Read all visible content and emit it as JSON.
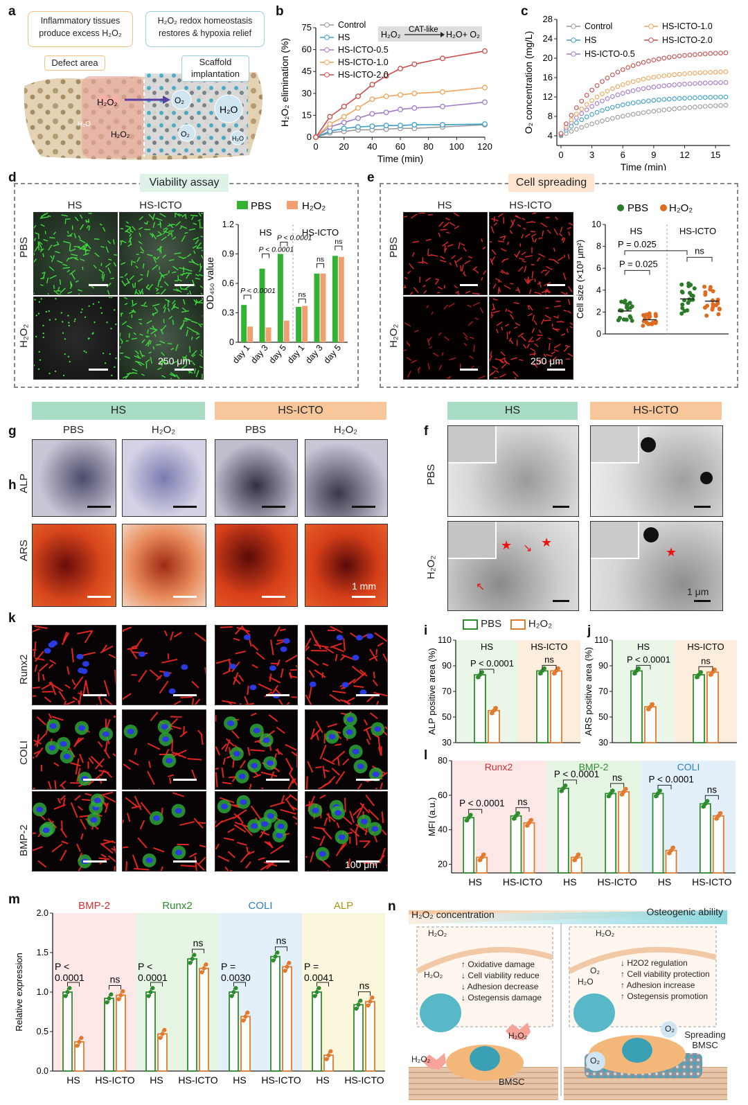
{
  "panels": {
    "a": "a",
    "b": "b",
    "c": "c",
    "d": "d",
    "e": "e",
    "f": "f",
    "g": "g",
    "h": "h",
    "i": "i",
    "j": "j",
    "k": "k",
    "l": "l",
    "m": "m",
    "n": "n"
  },
  "panel_a": {
    "callout1": "Inflammatory tissues produce excess H2O2",
    "callout2": "H2O2 redox homeostasis restores & hypoxia relief",
    "defect": "Defect area",
    "scaffold": "Scaffold implantation",
    "h2o2": "H2O2",
    "o2": "O2",
    "h2o": "H2O"
  },
  "panel_d": {
    "title": "Viability assay",
    "col1": "HS",
    "col2": "HS-ICTO",
    "row1": "PBS",
    "row2": "H2O2",
    "scale": "250 μm"
  },
  "panel_e": {
    "title": "Cell spreading",
    "col1": "HS",
    "col2": "HS-ICTO",
    "row1": "PBS",
    "row2": "H2O2",
    "scale": "250 μm"
  },
  "panel_gh": {
    "grp1": "HS",
    "grp2": "HS-ICTO",
    "c1": "PBS",
    "c2": "H2O2",
    "c3": "PBS",
    "c4": "H2O2",
    "row1": "ALP",
    "row2": "ARS",
    "scale": "1 mm"
  },
  "panel_f": {
    "grp1": "HS",
    "grp2": "HS-ICTO",
    "row1": "PBS",
    "row2": "H2O2",
    "scale": "1 μm"
  },
  "panel_k": {
    "row1": "Runx2",
    "row2": "COLI",
    "row3": "BMP-2",
    "scale": "100 μm"
  },
  "legend_ij": {
    "pbs": "PBS",
    "h2o2": "H2O2"
  },
  "panel_n": {
    "top_left": "H2O2 concentration",
    "top_right": "Osteogenic ability",
    "left_items": [
      "↑ Oxidative damage",
      "↓ Cell viability reduce",
      "↓ Adhesion decrease",
      "↓ Ostegensis damage"
    ],
    "right_items": [
      "↓ H2O2 regulation",
      "↑ Cell viability protection",
      "↑ Adhesion increase",
      "↑ Ostegensis promotion"
    ],
    "bmsc": "BMSC",
    "spreading": "Spreading BMSC",
    "h2o2": "H2O2",
    "o2": "O2",
    "h2o": "H2O"
  },
  "colors": {
    "green": "#2e8b2e",
    "orange": "#e07a2e",
    "blue": "#3a9fc4",
    "purple": "#a078c8",
    "red": "#c84b4b",
    "lorange": "#f0a35a",
    "grey": "#999999"
  },
  "chart_data": [
    {
      "id": "b",
      "type": "line",
      "xlabel": "Time (min)",
      "ylabel": "H2O2 elimination (%)",
      "reaction": "H2O2 CAT-like → H2O + O2",
      "xlim": [
        0,
        120
      ],
      "ylim": [
        0,
        75
      ],
      "xticks": [
        0,
        20,
        40,
        60,
        80,
        100,
        120
      ],
      "yticks": [
        0,
        15,
        30,
        45,
        60,
        75
      ],
      "x": [
        0,
        10,
        20,
        30,
        40,
        50,
        60,
        70,
        90,
        120
      ],
      "series": [
        {
          "name": "Control",
          "color": "#999999",
          "values": [
            0,
            3,
            4,
            5,
            5,
            5.5,
            6,
            6,
            7,
            8.5
          ]
        },
        {
          "name": "HS",
          "color": "#3a9fc4",
          "values": [
            0,
            4,
            6,
            7,
            7.5,
            8,
            8,
            8.5,
            8.5,
            9
          ]
        },
        {
          "name": "HS-ICTO-0.5",
          "color": "#a078c8",
          "values": [
            0,
            7,
            10,
            13,
            16,
            17,
            19,
            20,
            21,
            24
          ]
        },
        {
          "name": "HS-ICTO-1.0",
          "color": "#f0a35a",
          "values": [
            0,
            9,
            14,
            20,
            26,
            28,
            29,
            30,
            31,
            34
          ]
        },
        {
          "name": "HS-ICTO-2.0",
          "color": "#c84b4b",
          "values": [
            0,
            14,
            21,
            28,
            36,
            42,
            47,
            50,
            54,
            59
          ]
        }
      ]
    },
    {
      "id": "c",
      "type": "line",
      "xlabel": "Time (min)",
      "ylabel": "O2 concentration (mg/L)",
      "xlim": [
        0,
        16
      ],
      "ylim": [
        2,
        28
      ],
      "xticks": [
        0,
        3,
        6,
        9,
        12,
        15
      ],
      "yticks": [
        4,
        8,
        12,
        16,
        20,
        24,
        28
      ],
      "series": [
        {
          "name": "Control",
          "color": "#999999",
          "start": 4.0,
          "end": 10.3
        },
        {
          "name": "HS",
          "color": "#3a9fc4",
          "start": 4.2,
          "end": 12.0
        },
        {
          "name": "HS-ICTO-0.5",
          "color": "#a078c8",
          "start": 4.3,
          "end": 15.0
        },
        {
          "name": "HS-ICTO-1.0",
          "color": "#f0a35a",
          "start": 4.4,
          "end": 17.2
        },
        {
          "name": "HS-ICTO-2.0",
          "color": "#c84b4b",
          "start": 4.5,
          "end": 21.1
        }
      ]
    },
    {
      "id": "d",
      "type": "bar",
      "ylabel": "OD450 value",
      "ylim": [
        0,
        1.2
      ],
      "yticks": [
        0,
        0.3,
        0.6,
        0.9,
        1.2
      ],
      "groups": [
        "HS",
        "HS-ICTO"
      ],
      "categories": [
        "day 1",
        "day 3",
        "day 5",
        "day 1",
        "day 3",
        "day 5"
      ],
      "series": [
        {
          "name": "PBS",
          "color": "#33b233",
          "values": [
            0.38,
            0.75,
            0.9,
            0.36,
            0.7,
            0.88
          ]
        },
        {
          "name": "H2O2",
          "color": "#f0a070",
          "values": [
            0.16,
            0.15,
            0.22,
            0.37,
            0.7,
            0.87
          ]
        }
      ],
      "annotations": [
        "P < 0.0001",
        "P < 0.0001",
        "P < 0.0001",
        "ns",
        "ns",
        "ns"
      ]
    },
    {
      "id": "e",
      "type": "scatter",
      "ylabel": "Cell size (×10³ μm²)",
      "ylim": [
        0,
        10
      ],
      "yticks": [
        0,
        2,
        4,
        6,
        8,
        10
      ],
      "groups": [
        "HS",
        "HS-ICTO"
      ],
      "series": [
        {
          "name": "PBS",
          "color": "#2a7a2a"
        },
        {
          "name": "H2O2",
          "color": "#e06a20"
        }
      ],
      "means": [
        2.1,
        1.3,
        3.2,
        3.0
      ],
      "annotations": [
        "P = 0.025",
        "P = 0.025",
        "ns"
      ]
    },
    {
      "id": "i",
      "type": "bar",
      "ylabel": "ALP positive area (%)",
      "ylim": [
        30,
        110
      ],
      "yticks": [
        30,
        50,
        70,
        90,
        110
      ],
      "groups": [
        "HS",
        "HS-ICTO"
      ],
      "series": [
        {
          "name": "PBS",
          "values": [
            83,
            86
          ]
        },
        {
          "name": "H2O2",
          "values": [
            55,
            86
          ]
        }
      ],
      "annotations": [
        "P < 0.0001",
        "ns"
      ]
    },
    {
      "id": "j",
      "type": "bar",
      "ylabel": "ARS positive area (%)",
      "ylim": [
        30,
        110
      ],
      "yticks": [
        30,
        50,
        70,
        90,
        110
      ],
      "groups": [
        "HS",
        "HS-ICTO"
      ],
      "series": [
        {
          "name": "PBS",
          "values": [
            86,
            83
          ]
        },
        {
          "name": "H2O2",
          "values": [
            58,
            85
          ]
        }
      ],
      "annotations": [
        "P < 0.0001",
        "ns"
      ]
    },
    {
      "id": "l",
      "type": "bar",
      "ylabel": "MFI (a.u.)",
      "ylim": [
        15,
        80
      ],
      "yticks": [
        20,
        40,
        60,
        80
      ],
      "sections": [
        "Runx2",
        "BMP-2",
        "COLI"
      ],
      "categories": [
        "HS",
        "HS-ICTO",
        "HS",
        "HS-ICTO",
        "HS",
        "HS-ICTO"
      ],
      "series": [
        {
          "name": "PBS",
          "values": [
            47,
            48,
            64,
            61,
            61,
            55
          ]
        },
        {
          "name": "H2O2",
          "values": [
            24,
            44,
            24,
            62,
            28,
            48
          ]
        }
      ],
      "annotations": [
        "P < 0.0001",
        "ns",
        "P < 0.0001",
        "ns",
        "P < 0.0001",
        "ns"
      ]
    },
    {
      "id": "m",
      "type": "bar",
      "ylabel": "Relative expression",
      "ylim": [
        0,
        2.0
      ],
      "yticks": [
        0.0,
        0.5,
        1.0,
        1.5,
        2.0
      ],
      "sections": [
        "BMP-2",
        "Runx2",
        "COLI",
        "ALP"
      ],
      "categories": [
        "HS",
        "HS-ICTO",
        "HS",
        "HS-ICTO",
        "HS",
        "HS-ICTO",
        "HS",
        "HS-ICTO"
      ],
      "series": [
        {
          "name": "PBS",
          "values": [
            1.0,
            0.92,
            1.0,
            1.42,
            1.0,
            1.45,
            1.0,
            0.84
          ]
        },
        {
          "name": "H2O2",
          "values": [
            0.37,
            0.96,
            0.47,
            1.3,
            0.69,
            1.32,
            0.2,
            0.88
          ]
        }
      ],
      "annotations": [
        "P < 0.0001",
        "ns",
        "P < 0.0001",
        "ns",
        "P = 0.0030",
        "ns",
        "P = 0.0041",
        "ns"
      ]
    }
  ]
}
